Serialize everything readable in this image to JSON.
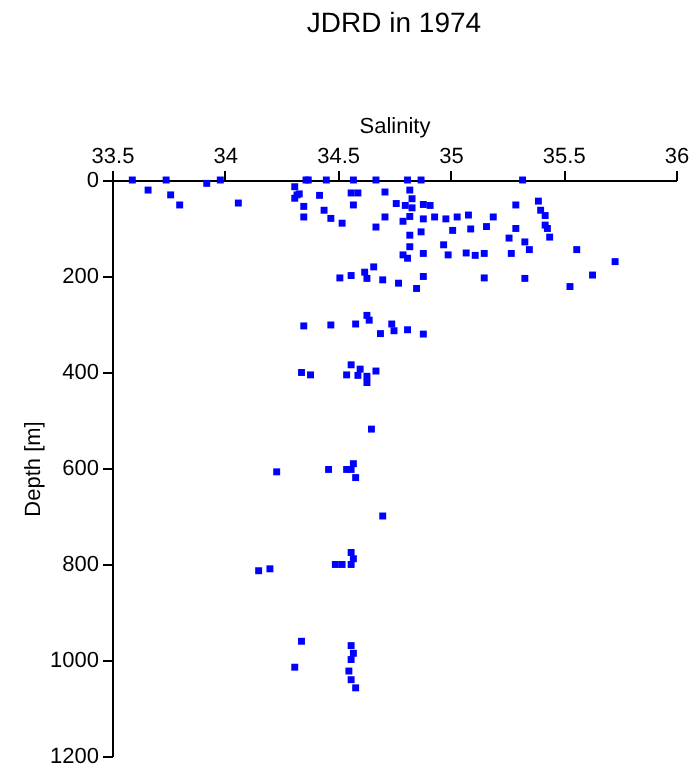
{
  "chart_data": {
    "type": "scatter",
    "title": "JDRD in 1974",
    "xlabel": "Salinity",
    "ylabel": "Depth [m]",
    "xlim": [
      33.5,
      36
    ],
    "xticks": [
      33.5,
      34,
      34.5,
      35,
      35.5,
      36
    ],
    "ylim": [
      1200,
      0
    ],
    "yticks": [
      0,
      200,
      400,
      600,
      800,
      1000,
      1200
    ],
    "marker": "square",
    "grid": false,
    "series": [
      {
        "color": "#0000ff",
        "x": [
          33.59,
          33.66,
          33.74,
          33.76,
          33.8,
          33.92,
          33.98,
          34.06,
          34.31,
          34.32,
          34.31,
          34.33,
          34.36,
          34.37,
          34.35,
          34.35,
          34.42,
          34.44,
          34.45,
          34.47,
          34.52,
          34.57,
          34.56,
          34.59,
          34.57,
          34.67,
          34.67,
          34.71,
          34.71,
          34.76,
          34.79,
          34.81,
          34.82,
          34.83,
          34.8,
          34.83,
          34.87,
          34.88,
          34.91,
          34.88,
          34.82,
          34.93,
          34.98,
          35.03,
          35.01,
          35.08,
          35.09,
          35.16,
          35.19,
          35.32,
          35.29,
          35.26,
          35.29,
          35.33,
          35.35,
          35.39,
          35.4,
          35.42,
          35.42,
          35.43,
          35.44,
          34.82,
          34.87,
          34.82,
          34.79,
          34.81,
          34.88,
          34.97,
          34.99,
          35.07,
          35.11,
          35.15,
          35.27,
          35.56,
          35.73,
          35.63,
          35.53,
          35.15,
          35.33,
          34.88,
          34.85,
          34.77,
          34.7,
          34.66,
          34.63,
          34.62,
          34.56,
          34.51,
          34.35,
          34.47,
          34.58,
          34.63,
          34.64,
          34.69,
          34.74,
          34.75,
          34.81,
          34.88,
          34.34,
          34.38,
          34.54,
          34.56,
          34.59,
          34.6,
          34.63,
          34.63,
          34.67,
          34.65,
          34.23,
          34.46,
          34.54,
          34.57,
          34.58,
          34.56,
          34.7,
          34.56,
          34.57,
          34.49,
          34.52,
          34.56,
          34.15,
          34.2,
          34.34,
          34.31,
          34.56,
          34.57,
          34.56,
          34.55,
          34.56,
          34.58
        ],
        "values": [
          0,
          21,
          0,
          31,
          52,
          7,
          0,
          48,
          14,
          31,
          38,
          29,
          0,
          0,
          55,
          77,
          32,
          63,
          0,
          80,
          90,
          0,
          27,
          27,
          52,
          0,
          98,
          25,
          77,
          49,
          86,
          0,
          21,
          39,
          53,
          58,
          0,
          51,
          53,
          81,
          76,
          77,
          81,
          77,
          105,
          73,
          102,
          97,
          77,
          0,
          52,
          121,
          101,
          129,
          145,
          44,
          63,
          74,
          94,
          101,
          119,
          115,
          108,
          139,
          156,
          163,
          153,
          135,
          156,
          152,
          157,
          153,
          153,
          145,
          170,
          198,
          222,
          204,
          205,
          201,
          226,
          215,
          208,
          181,
          205,
          192,
          199,
          204,
          304,
          302,
          300,
          282,
          292,
          320,
          300,
          314,
          312,
          321,
          401,
          406,
          406,
          385,
          407,
          394,
          409,
          422,
          398,
          519,
          608,
          603,
          603,
          591,
          620,
          603,
          700,
          776,
          789,
          801,
          801,
          801,
          814,
          810,
          961,
          1015,
          970,
          986,
          999,
          1023,
          1041,
          1058
        ]
      }
    ]
  }
}
